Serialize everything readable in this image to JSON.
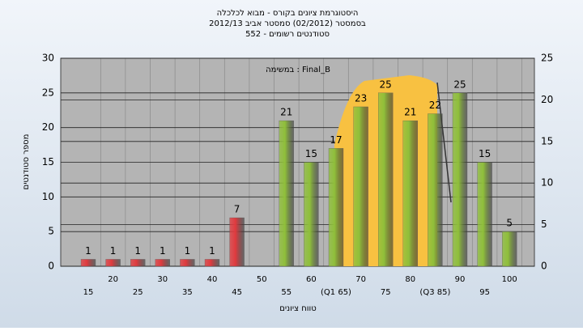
{
  "chart_data": {
    "type": "bar",
    "title": [
      "היסטוגרמת ציונים בקורס - מבוא לכלכלה",
      "בסמסטר  (02/2012)  סמסטר אביב 2012/13",
      "סטודנטים רשומים - 552"
    ],
    "annotation": "במשימה : Final_B",
    "ylabel": "מספר סטודנטים",
    "xlabel": "טווח ציונים",
    "categories": [
      "15",
      "20",
      "25",
      "30",
      "35",
      "40",
      "45",
      "50",
      "55",
      "60",
      "(Q1 65)",
      "70",
      "75",
      "80",
      "(Q3 85)",
      "90",
      "95",
      "100"
    ],
    "values": [
      1,
      1,
      1,
      1,
      1,
      1,
      7,
      null,
      21,
      15,
      17,
      23,
      25,
      21,
      22,
      25,
      15,
      5
    ],
    "bar_colors": [
      "#e03a3e",
      "#e03a3e",
      "#e03a3e",
      "#e03a3e",
      "#e03a3e",
      "#e03a3e",
      "#e03a3e",
      "#e03a3e",
      "#8fbf3a",
      "#8fbf3a",
      "#8fbf3a",
      "#8fbf3a",
      "#8fbf3a",
      "#8fbf3a",
      "#8fbf3a",
      "#8fbf3a",
      "#8fbf3a",
      "#8fbf3a"
    ],
    "ylim": [
      0,
      30
    ],
    "yticks": [
      0,
      5,
      10,
      15,
      20,
      25,
      30
    ],
    "y2lim": [
      0,
      25
    ],
    "y2ticks": [
      0,
      5,
      10,
      15,
      20,
      25
    ],
    "grid": true
  }
}
